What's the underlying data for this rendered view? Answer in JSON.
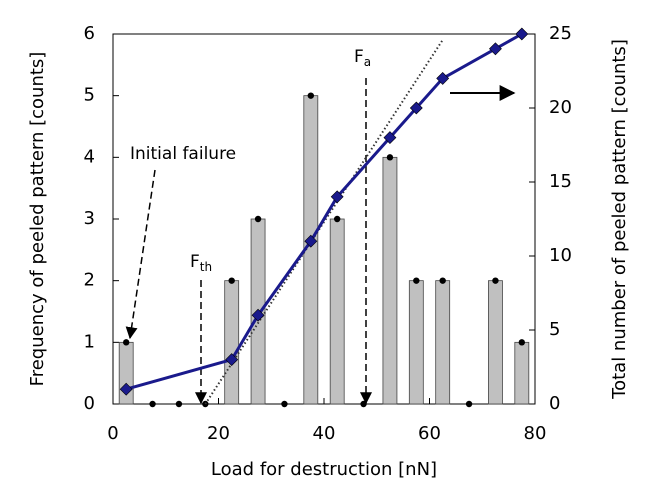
{
  "chart_data": {
    "type": "bar",
    "x_label": "Load for destruction [nN]",
    "y_label": "Frequency of peeled pattern [counts]",
    "y2_label": "Total number of peeled pattern [counts]",
    "x": [
      2.5,
      7.5,
      12.5,
      17.5,
      22.5,
      27.5,
      32.5,
      37.5,
      42.5,
      47.5,
      52.5,
      57.5,
      62.5,
      67.5,
      72.5,
      77.5
    ],
    "values": [
      1,
      0,
      0,
      0,
      2,
      3,
      0,
      5,
      3,
      0,
      4,
      2,
      2,
      0,
      2,
      1
    ],
    "color": "#c0c0c0",
    "cumulative": {
      "x": [
        2.5,
        22.5,
        27.5,
        37.5,
        42.5,
        52.5,
        57.5,
        62.5,
        72.5,
        77.5
      ],
      "values": [
        1,
        3,
        6,
        11,
        14,
        18,
        20,
        22,
        24,
        25
      ],
      "axis": "y2",
      "color": "#1a1a8c"
    },
    "fit_line": {
      "x": [
        17.5,
        62.5
      ],
      "values": [
        0,
        24.6
      ],
      "axis": "y2"
    },
    "xlim": [
      0,
      80
    ],
    "xticks": [
      0,
      20,
      40,
      60,
      80
    ],
    "ylim": [
      0,
      6
    ],
    "yticks": [
      0,
      1,
      2,
      3,
      4,
      5,
      6
    ],
    "y2lim": [
      0,
      25
    ],
    "y2ticks": [
      0,
      5,
      10,
      15,
      20,
      25
    ],
    "annotations": {
      "initial_failure": "Initial failure",
      "f_th": {
        "text": "F",
        "sub": "th"
      },
      "f_a": {
        "text": "F",
        "sub": "a"
      }
    }
  }
}
